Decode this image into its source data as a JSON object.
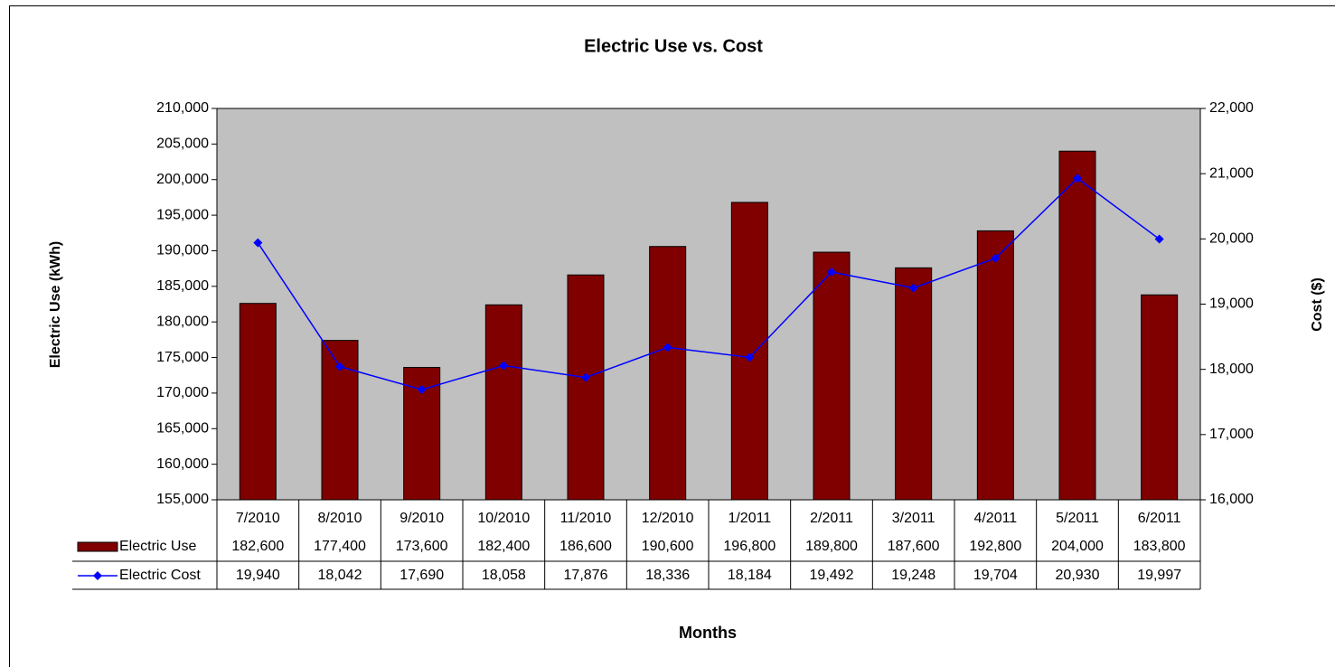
{
  "chart_data": {
    "type": "bar-line",
    "title": "Electric Use vs. Cost",
    "ylabel": "Electric Use (kWh)",
    "y2label": "Cost ($)",
    "xlabel": "Months",
    "categories": [
      "7/2010",
      "8/2010",
      "9/2010",
      "10/2010",
      "11/2010",
      "12/2010",
      "1/2011",
      "2/2011",
      "3/2011",
      "4/2011",
      "5/2011",
      "6/2011"
    ],
    "series": [
      {
        "name": "Electric Use",
        "type": "bar",
        "color": "#800000",
        "axis": "y",
        "values": [
          182600,
          177400,
          173600,
          182400,
          186600,
          190600,
          196800,
          189800,
          187600,
          192800,
          204000,
          183800
        ],
        "value_labels": [
          "182,600",
          "177,400",
          "173,600",
          "182,400",
          "186,600",
          "190,600",
          "196,800",
          "189,800",
          "187,600",
          "192,800",
          "204,000",
          "183,800"
        ]
      },
      {
        "name": "Electric Cost",
        "type": "line",
        "color": "#0000ff",
        "axis": "y2",
        "values": [
          19940,
          18042,
          17690,
          18058,
          17876,
          18336,
          18184,
          19492,
          19248,
          19704,
          20930,
          19997
        ],
        "value_labels": [
          "19,940",
          "18,042",
          "17,690",
          "18,058",
          "17,876",
          "18,336",
          "18,184",
          "19,492",
          "19,248",
          "19,704",
          "20,930",
          "19,997"
        ]
      }
    ],
    "ylim": [
      155000,
      210000
    ],
    "yticks": [
      {
        "value": 155000,
        "label": "155,000"
      },
      {
        "value": 160000,
        "label": "160,000"
      },
      {
        "value": 165000,
        "label": "165,000"
      },
      {
        "value": 170000,
        "label": "170,000"
      },
      {
        "value": 175000,
        "label": "175,000"
      },
      {
        "value": 180000,
        "label": "180,000"
      },
      {
        "value": 185000,
        "label": "185,000"
      },
      {
        "value": 190000,
        "label": "190,000"
      },
      {
        "value": 195000,
        "label": "195,000"
      },
      {
        "value": 200000,
        "label": "200,000"
      },
      {
        "value": 205000,
        "label": "205,000"
      },
      {
        "value": 210000,
        "label": "210,000"
      }
    ],
    "y2lim": [
      16000,
      22000
    ],
    "y2ticks": [
      {
        "value": 16000,
        "label": "16,000"
      },
      {
        "value": 17000,
        "label": "17,000"
      },
      {
        "value": 18000,
        "label": "18,000"
      },
      {
        "value": 19000,
        "label": "19,000"
      },
      {
        "value": 20000,
        "label": "20,000"
      },
      {
        "value": 21000,
        "label": "21,000"
      },
      {
        "value": 22000,
        "label": "22,000"
      }
    ],
    "plot_background": "#c0c0c0"
  }
}
